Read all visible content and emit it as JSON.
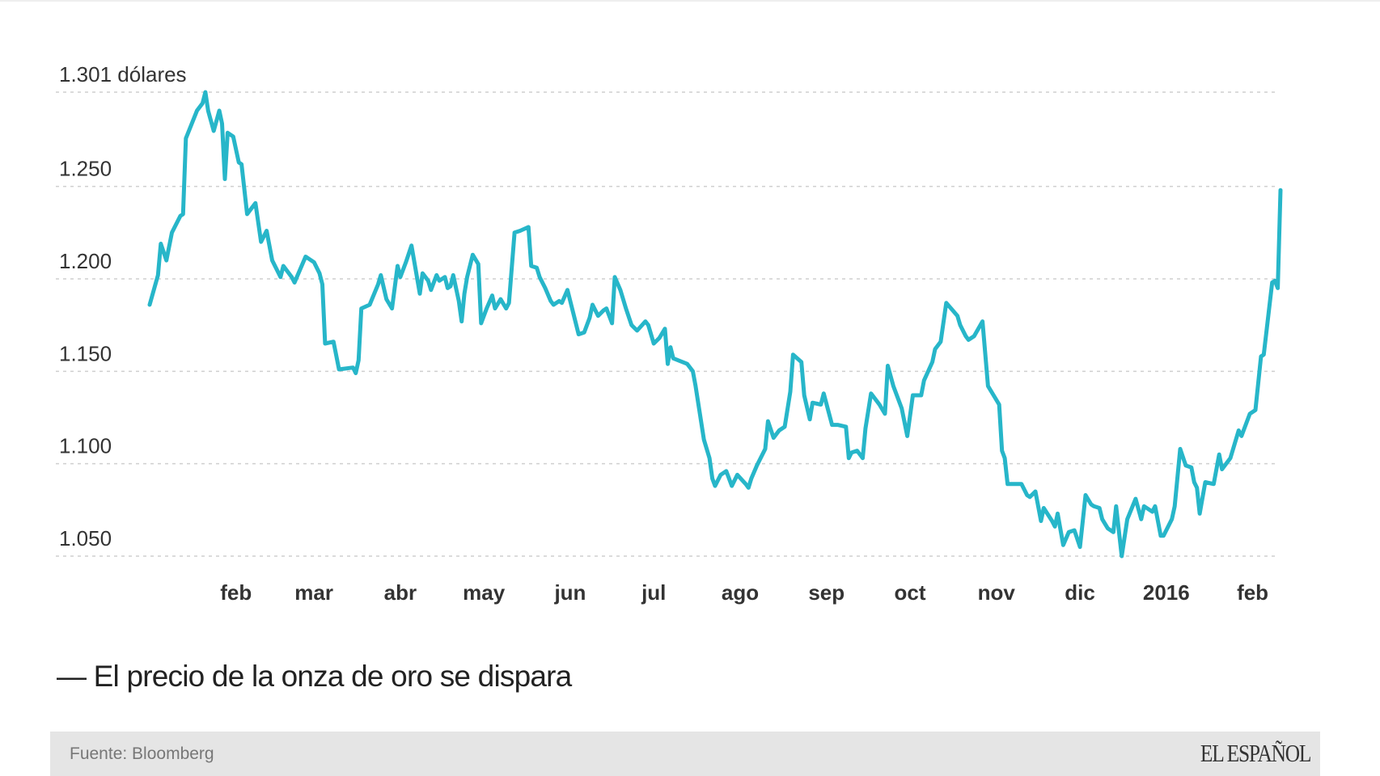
{
  "chart_data": {
    "type": "line",
    "title": "— El precio de la onza de oro se dispara",
    "ylabel": "dólares",
    "ylim": [
      1050,
      1301
    ],
    "grid": true,
    "color": "#27b6c9",
    "y_ticks": [
      {
        "value": 1301,
        "label": "1.301 dólares"
      },
      {
        "value": 1250,
        "label": "1.250"
      },
      {
        "value": 1200,
        "label": "1.200"
      },
      {
        "value": 1150,
        "label": "1.150"
      },
      {
        "value": 1100,
        "label": "1.100"
      },
      {
        "value": 1050,
        "label": "1.050"
      }
    ],
    "x_ticks": [
      {
        "day": 31,
        "label": "feb"
      },
      {
        "day": 59,
        "label": "mar"
      },
      {
        "day": 90,
        "label": "abr"
      },
      {
        "day": 120,
        "label": "may"
      },
      {
        "day": 151,
        "label": "jun"
      },
      {
        "day": 181,
        "label": "jul"
      },
      {
        "day": 212,
        "label": "ago"
      },
      {
        "day": 243,
        "label": "sep"
      },
      {
        "day": 273,
        "label": "oct"
      },
      {
        "day": 304,
        "label": "nov"
      },
      {
        "day": 334,
        "label": "dic"
      },
      {
        "day": 365,
        "label": "2016"
      },
      {
        "day": 396,
        "label": "feb"
      }
    ],
    "xlim": [
      0,
      406
    ],
    "series": [
      {
        "name": "Precio de la onza de oro",
        "points": [
          [
            0,
            1186
          ],
          [
            3,
            1202
          ],
          [
            4,
            1219
          ],
          [
            6,
            1210
          ],
          [
            8,
            1225
          ],
          [
            11,
            1234
          ],
          [
            12,
            1235
          ],
          [
            13,
            1276
          ],
          [
            17,
            1291
          ],
          [
            19,
            1295
          ],
          [
            20,
            1301
          ],
          [
            21,
            1291
          ],
          [
            23,
            1280
          ],
          [
            25,
            1291
          ],
          [
            26,
            1284
          ],
          [
            27,
            1254
          ],
          [
            28,
            1279
          ],
          [
            30,
            1277
          ],
          [
            32,
            1263
          ],
          [
            33,
            1262
          ],
          [
            35,
            1235
          ],
          [
            38,
            1241
          ],
          [
            40,
            1220
          ],
          [
            42,
            1226
          ],
          [
            44,
            1210
          ],
          [
            47,
            1201
          ],
          [
            48,
            1207
          ],
          [
            51,
            1201
          ],
          [
            52,
            1198
          ],
          [
            56,
            1212
          ],
          [
            59,
            1209
          ],
          [
            61,
            1203
          ],
          [
            62,
            1197
          ],
          [
            63,
            1165
          ],
          [
            66,
            1166
          ],
          [
            68,
            1151
          ],
          [
            73,
            1152
          ],
          [
            74,
            1149
          ],
          [
            75,
            1156
          ],
          [
            76,
            1184
          ],
          [
            79,
            1186
          ],
          [
            82,
            1197
          ],
          [
            83,
            1202
          ],
          [
            85,
            1189
          ],
          [
            87,
            1184
          ],
          [
            89,
            1207
          ],
          [
            90,
            1201
          ],
          [
            92,
            1209
          ],
          [
            94,
            1218
          ],
          [
            97,
            1192
          ],
          [
            98,
            1203
          ],
          [
            100,
            1199
          ],
          [
            101,
            1194
          ],
          [
            103,
            1202
          ],
          [
            104,
            1199
          ],
          [
            106,
            1201
          ],
          [
            107,
            1195
          ],
          [
            108,
            1196
          ],
          [
            109,
            1202
          ],
          [
            111,
            1188
          ],
          [
            112,
            1177
          ],
          [
            113,
            1192
          ],
          [
            114,
            1201
          ],
          [
            116,
            1213
          ],
          [
            118,
            1208
          ],
          [
            119,
            1176
          ],
          [
            121,
            1184
          ],
          [
            123,
            1191
          ],
          [
            124,
            1184
          ],
          [
            126,
            1189
          ],
          [
            128,
            1184
          ],
          [
            129,
            1187
          ],
          [
            131,
            1225
          ],
          [
            133,
            1226
          ],
          [
            136,
            1228
          ],
          [
            137,
            1207
          ],
          [
            139,
            1206
          ],
          [
            140,
            1201
          ],
          [
            142,
            1195
          ],
          [
            144,
            1188
          ],
          [
            145,
            1186
          ],
          [
            147,
            1188
          ],
          [
            148,
            1187
          ],
          [
            150,
            1194
          ],
          [
            152,
            1182
          ],
          [
            154,
            1170
          ],
          [
            156,
            1171
          ],
          [
            158,
            1179
          ],
          [
            159,
            1186
          ],
          [
            161,
            1180
          ],
          [
            163,
            1183
          ],
          [
            164,
            1184
          ],
          [
            166,
            1176
          ],
          [
            167,
            1201
          ],
          [
            169,
            1194
          ],
          [
            171,
            1184
          ],
          [
            173,
            1175
          ],
          [
            175,
            1172
          ],
          [
            178,
            1177
          ],
          [
            179,
            1175
          ],
          [
            181,
            1165
          ],
          [
            183,
            1168
          ],
          [
            185,
            1173
          ],
          [
            186,
            1154
          ],
          [
            187,
            1163
          ],
          [
            188,
            1157
          ],
          [
            193,
            1154
          ],
          [
            195,
            1150
          ],
          [
            196,
            1142
          ],
          [
            199,
            1113
          ],
          [
            201,
            1103
          ],
          [
            202,
            1092
          ],
          [
            203,
            1088
          ],
          [
            205,
            1094
          ],
          [
            207,
            1096
          ],
          [
            209,
            1088
          ],
          [
            211,
            1094
          ],
          [
            214,
            1089
          ],
          [
            215,
            1087
          ],
          [
            216,
            1092
          ],
          [
            218,
            1099
          ],
          [
            221,
            1108
          ],
          [
            222,
            1123
          ],
          [
            224,
            1114
          ],
          [
            226,
            1118
          ],
          [
            228,
            1120
          ],
          [
            230,
            1139
          ],
          [
            231,
            1159
          ],
          [
            234,
            1155
          ],
          [
            235,
            1137
          ],
          [
            237,
            1124
          ],
          [
            238,
            1133
          ],
          [
            241,
            1132
          ],
          [
            242,
            1138
          ],
          [
            245,
            1121
          ],
          [
            247,
            1121
          ],
          [
            250,
            1120
          ],
          [
            251,
            1103
          ],
          [
            252,
            1106
          ],
          [
            254,
            1107
          ],
          [
            256,
            1103
          ],
          [
            257,
            1119
          ],
          [
            259,
            1138
          ],
          [
            262,
            1132
          ],
          [
            264,
            1127
          ],
          [
            265,
            1153
          ],
          [
            267,
            1142
          ],
          [
            270,
            1130
          ],
          [
            272,
            1115
          ],
          [
            274,
            1137
          ],
          [
            277,
            1137
          ],
          [
            278,
            1145
          ],
          [
            281,
            1155
          ],
          [
            282,
            1162
          ],
          [
            284,
            1166
          ],
          [
            286,
            1187
          ],
          [
            290,
            1180
          ],
          [
            291,
            1175
          ],
          [
            293,
            1169
          ],
          [
            294,
            1167
          ],
          [
            296,
            1169
          ],
          [
            299,
            1177
          ],
          [
            301,
            1142
          ],
          [
            303,
            1137
          ],
          [
            305,
            1132
          ],
          [
            306,
            1107
          ],
          [
            307,
            1103
          ],
          [
            308,
            1089
          ],
          [
            313,
            1089
          ],
          [
            315,
            1083
          ],
          [
            316,
            1082
          ],
          [
            318,
            1085
          ],
          [
            320,
            1069
          ],
          [
            321,
            1076
          ],
          [
            324,
            1069
          ],
          [
            325,
            1066
          ],
          [
            326,
            1073
          ],
          [
            328,
            1056
          ],
          [
            330,
            1063
          ],
          [
            332,
            1064
          ],
          [
            334,
            1055
          ],
          [
            336,
            1083
          ],
          [
            338,
            1078
          ],
          [
            339,
            1077
          ],
          [
            341,
            1076
          ],
          [
            342,
            1070
          ],
          [
            344,
            1065
          ],
          [
            346,
            1063
          ],
          [
            347,
            1077
          ],
          [
            349,
            1050
          ],
          [
            351,
            1070
          ],
          [
            354,
            1081
          ],
          [
            356,
            1070
          ],
          [
            357,
            1077
          ],
          [
            360,
            1074
          ],
          [
            361,
            1077
          ],
          [
            363,
            1061
          ],
          [
            364,
            1061
          ],
          [
            367,
            1070
          ],
          [
            368,
            1077
          ],
          [
            370,
            1108
          ],
          [
            372,
            1099
          ],
          [
            374,
            1098
          ],
          [
            375,
            1090
          ],
          [
            376,
            1087
          ],
          [
            377,
            1073
          ],
          [
            379,
            1090
          ],
          [
            382,
            1089
          ],
          [
            384,
            1105
          ],
          [
            385,
            1097
          ],
          [
            388,
            1103
          ],
          [
            391,
            1118
          ],
          [
            392,
            1115
          ],
          [
            395,
            1127
          ],
          [
            397,
            1129
          ],
          [
            399,
            1158
          ],
          [
            400,
            1159
          ],
          [
            403,
            1198
          ],
          [
            404,
            1199
          ],
          [
            405,
            1195
          ],
          [
            406,
            1248
          ]
        ]
      }
    ]
  },
  "footer": {
    "source": "Fuente: Bloomberg",
    "logo": "EL ESPAÑOL"
  }
}
